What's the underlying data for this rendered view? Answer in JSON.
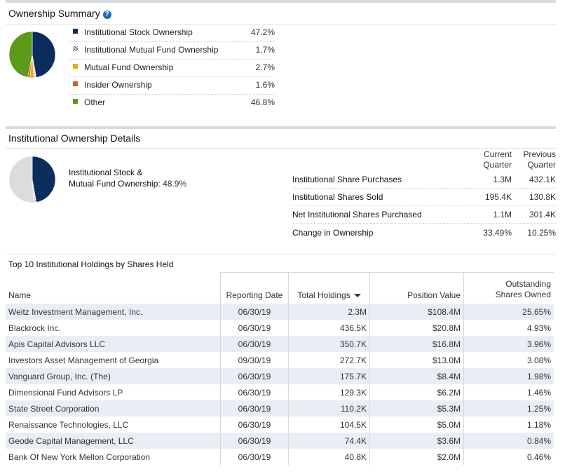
{
  "summary": {
    "title": "Ownership Summary",
    "help_icon": "?",
    "items": [
      {
        "label": "Institutional Stock Ownership",
        "value": "47.2%",
        "color": "#0b2d5e"
      },
      {
        "label": "Institutional Mutual Fund Ownership",
        "value": "1.7%",
        "color": "#8a96a8"
      },
      {
        "label": "Mutual Fund Ownership",
        "value": "2.7%",
        "color": "#f0a81a"
      },
      {
        "label": "Insider Ownership",
        "value": "1.6%",
        "color": "#d5641b"
      },
      {
        "label": "Other",
        "value": "46.8%",
        "color": "#5b9a1a"
      }
    ]
  },
  "details": {
    "title": "Institutional Ownership Details",
    "pie_label_line1": "Institutional Stock &",
    "pie_label_line2": "Mutual Fund Ownership:",
    "pie_value": "48.9%",
    "col1_line1": "Current",
    "col1_line2": "Quarter",
    "col2_line1": "Previous",
    "col2_line2": "Quarter",
    "rows": [
      {
        "label": "Institutional Share Purchases",
        "current": "1.3M",
        "previous": "432.1K"
      },
      {
        "label": "Institutional Shares Sold",
        "current": "195.4K",
        "previous": "130.8K"
      },
      {
        "label": "Net Institutional Shares Purchased",
        "current": "1.1M",
        "previous": "301.4K"
      },
      {
        "label": "Change in Ownership",
        "current": "33.49%",
        "previous": "10.25%"
      }
    ]
  },
  "holdings": {
    "title": "Top 10 Institutional Holdings by Shares Held",
    "headers": {
      "name": "Name",
      "date": "Reporting Date",
      "total": "Total Holdings",
      "value": "Position Value",
      "out_line1": "Outstanding",
      "out_line2": "Shares Owned"
    },
    "rows": [
      {
        "name": "Weitz Investment Management, Inc.",
        "date": "06/30/19",
        "total": "2.3M",
        "value": "$108.4M",
        "pct": "25.65%"
      },
      {
        "name": "Blackrock Inc.",
        "date": "06/30/19",
        "total": "436.5K",
        "value": "$20.8M",
        "pct": "4.93%"
      },
      {
        "name": "Apis Capital Advisors LLC",
        "date": "06/30/19",
        "total": "350.7K",
        "value": "$16.8M",
        "pct": "3.96%"
      },
      {
        "name": "Investors Asset Management of Georgia",
        "date": "09/30/19",
        "total": "272.7K",
        "value": "$13.0M",
        "pct": "3.08%"
      },
      {
        "name": "Vanguard Group, Inc. (The)",
        "date": "06/30/19",
        "total": "175.7K",
        "value": "$8.4M",
        "pct": "1.98%"
      },
      {
        "name": "Dimensional Fund Advisors LP",
        "date": "06/30/19",
        "total": "129.3K",
        "value": "$6.2M",
        "pct": "1.46%"
      },
      {
        "name": "State Street Corporation",
        "date": "06/30/19",
        "total": "110.2K",
        "value": "$5.3M",
        "pct": "1.25%"
      },
      {
        "name": "Renaissance Technologies, LLC",
        "date": "06/30/19",
        "total": "104.5K",
        "value": "$5.0M",
        "pct": "1.18%"
      },
      {
        "name": "Geode Capital Management, LLC",
        "date": "06/30/19",
        "total": "74.4K",
        "value": "$3.6M",
        "pct": "0.84%"
      },
      {
        "name": "Bank Of New York Mellon Corporation",
        "date": "06/30/19",
        "total": "40.8K",
        "value": "$2.0M",
        "pct": "0.46%"
      }
    ]
  }
}
